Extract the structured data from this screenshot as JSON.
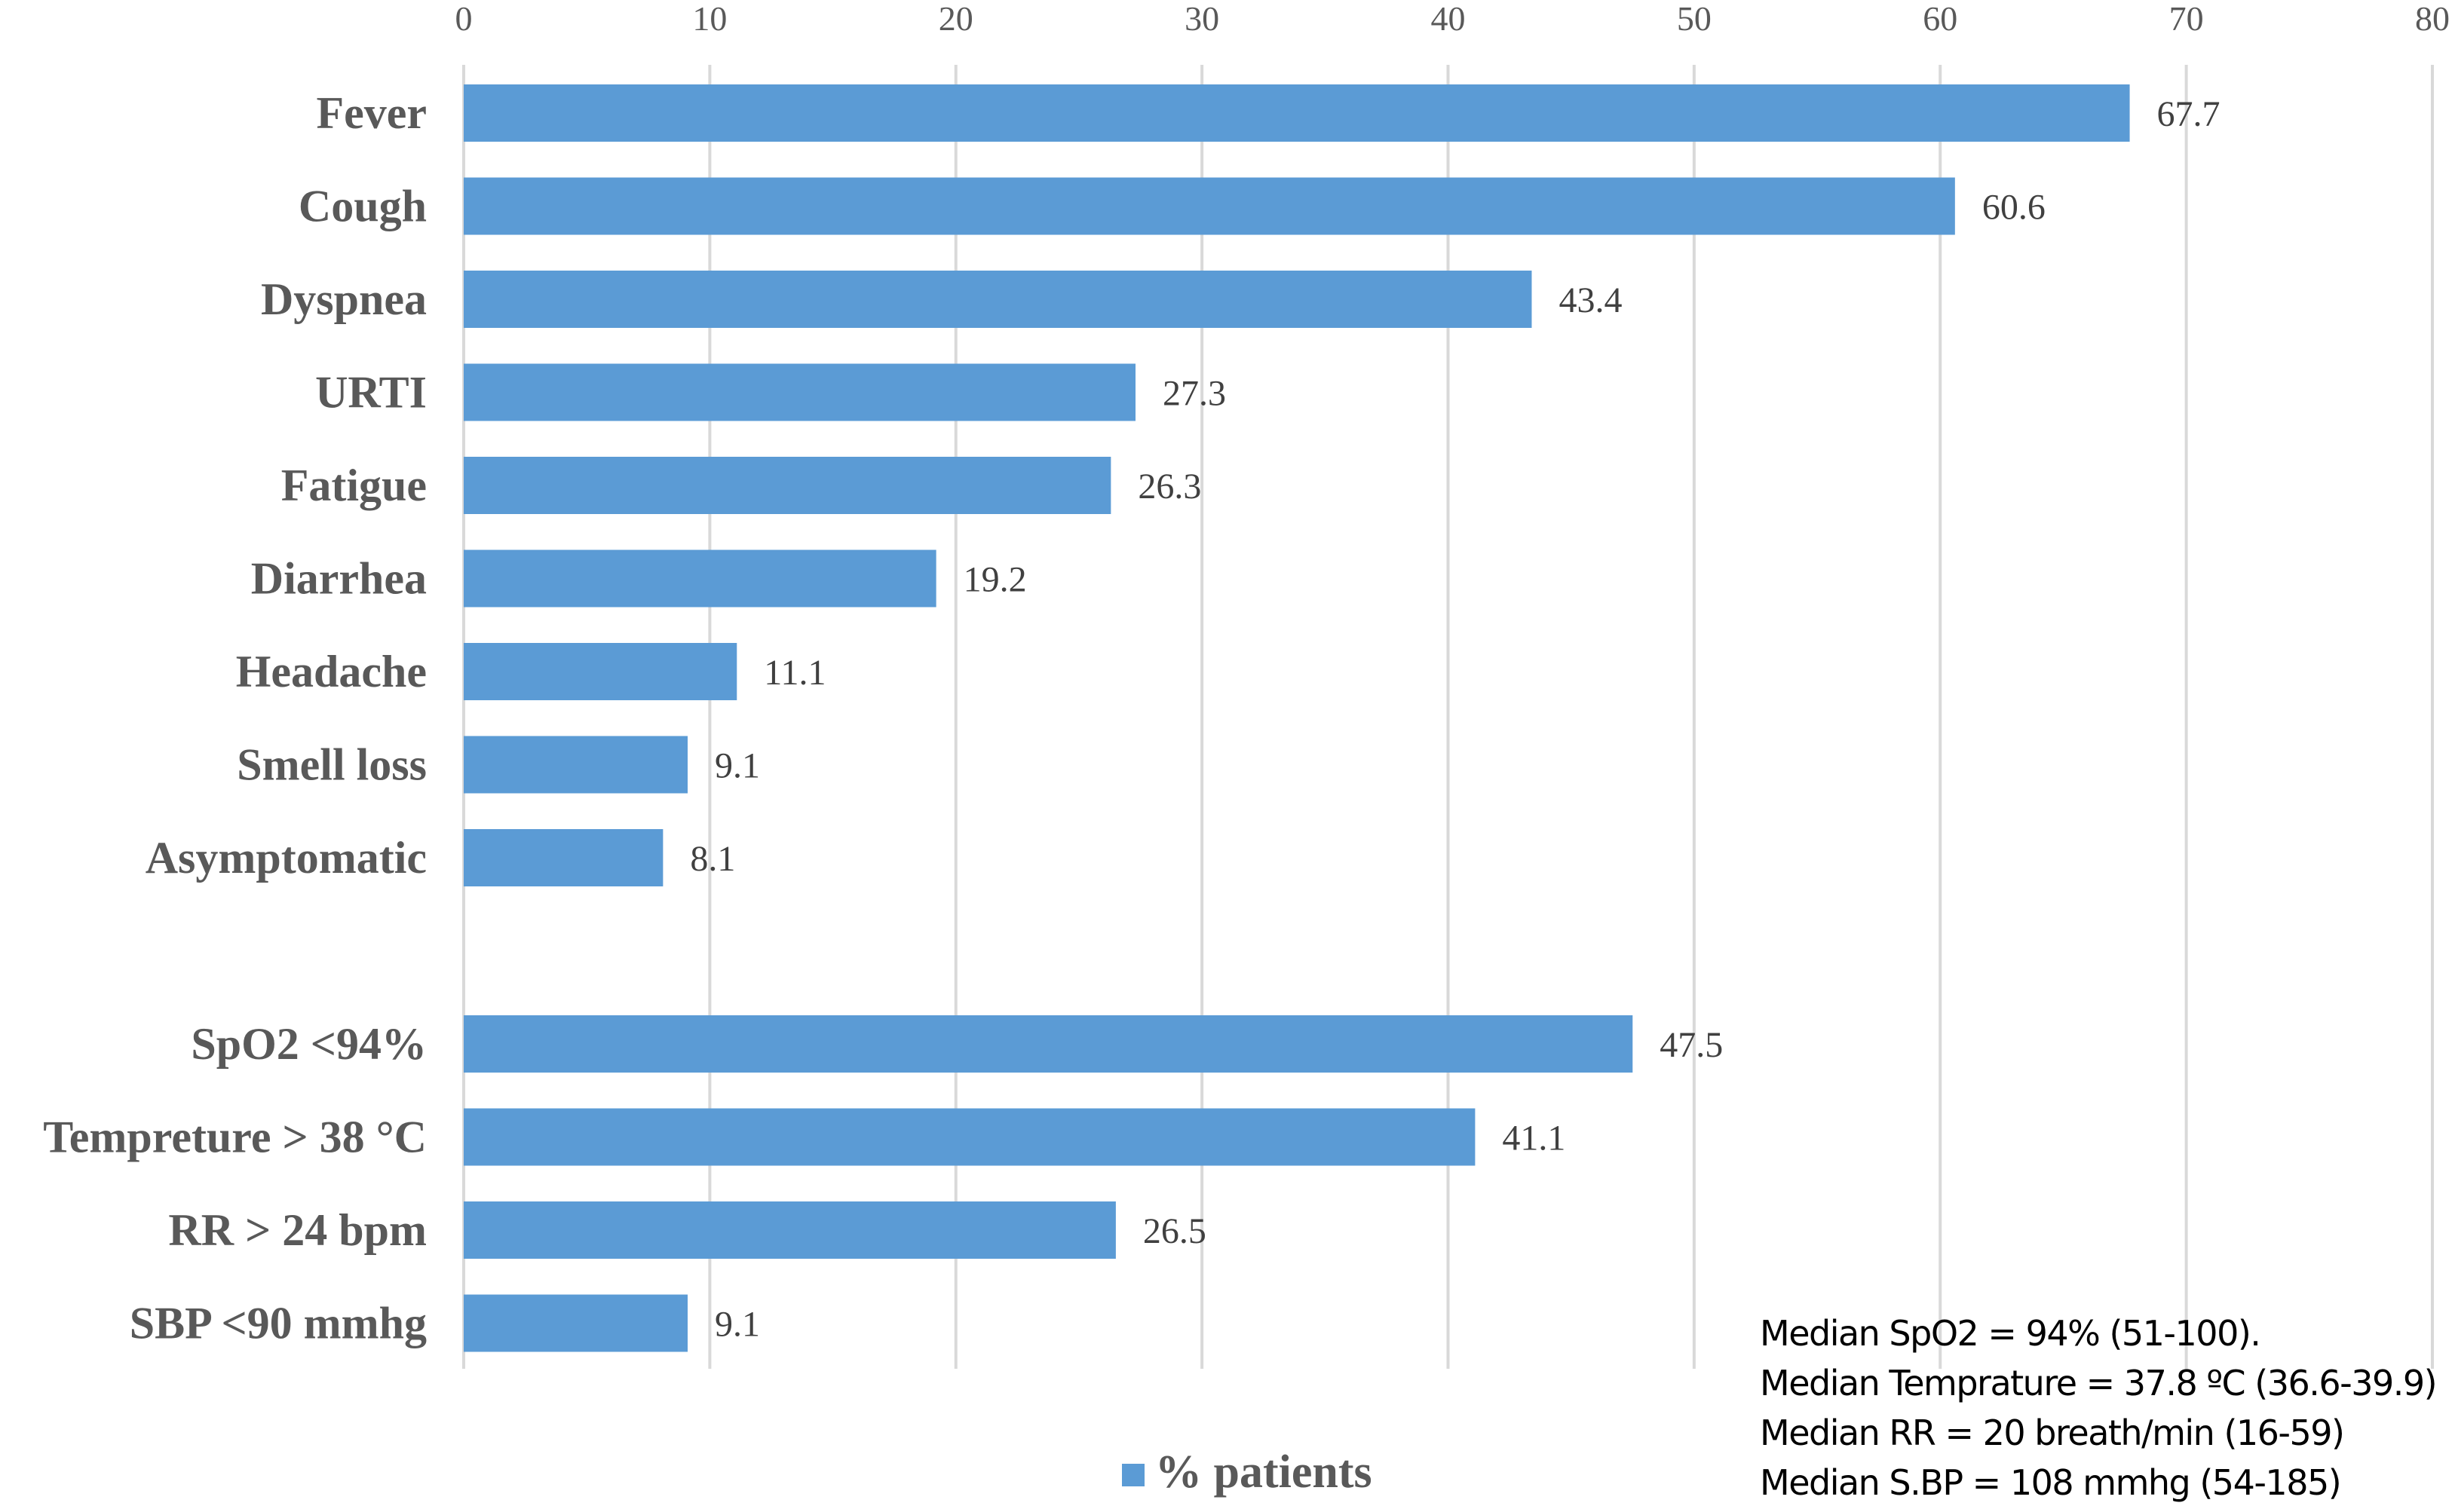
{
  "colors": {
    "bar": "#5b9bd5",
    "grid": "#d9d9d9",
    "text": "#595959"
  },
  "chart_data": {
    "type": "bar",
    "orientation": "horizontal",
    "xlim": [
      0,
      80
    ],
    "ticks": [
      0,
      10,
      20,
      30,
      40,
      50,
      60,
      70,
      80
    ],
    "x_axis_position": "top",
    "grid": true,
    "legend_position": "bottom",
    "series": [
      {
        "name": "% patients",
        "color": "#5b9bd5"
      }
    ],
    "groups": [
      {
        "categories": [
          "Fever",
          "Cough",
          "Dyspnea",
          "URTI",
          "Fatigue",
          "Diarrhea",
          "Headache",
          "Smell loss",
          "Asymptomatic"
        ],
        "values": [
          67.7,
          60.6,
          43.4,
          27.3,
          26.3,
          19.2,
          11.1,
          9.1,
          8.1
        ],
        "labels": [
          "67.7",
          "60.6",
          "43.4",
          "27.3",
          "26.3",
          "19.2",
          "11.1",
          "9.1",
          "8.1"
        ]
      },
      {
        "categories": [
          "SpO2 <94%",
          "Tempreture > 38 °C",
          "RR > 24 bpm",
          "SBP <90 mmhg"
        ],
        "values": [
          47.5,
          41.1,
          26.5,
          9.1
        ],
        "labels": [
          "47.5",
          "41.1",
          "26.5",
          "9.1"
        ]
      }
    ],
    "annotations": [
      "Median SpO2 = 94% (51-100).",
      "Median Temprature = 37.8 ºC (36.6-39.9)",
      "Median RR = 20 breath/min (16-59)",
      "Median S.BP = 108 mmhg (54-185)"
    ]
  }
}
